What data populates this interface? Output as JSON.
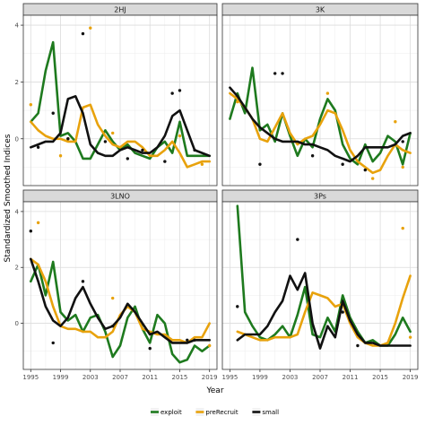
{
  "chart_data": {
    "type": "line",
    "ylabel": "Standardized Smoothed Indices",
    "xlabel": "Year",
    "x_ticks": [
      1995,
      1999,
      2003,
      2007,
      2011,
      2015,
      2019
    ],
    "y_ticks": [
      0,
      2,
      4
    ],
    "xlim": [
      1994,
      2020
    ],
    "ylim": [
      -1.65,
      4.35
    ],
    "grid": true,
    "legend_position": "bottom",
    "legend": [
      {
        "name": "exploit",
        "color": "#1e7a1e"
      },
      {
        "name": "preRecruit",
        "color": "#e8a20c"
      },
      {
        "name": "small",
        "color": "#111111"
      }
    ],
    "panels": [
      {
        "title": "2HJ",
        "series": [
          {
            "name": "exploit",
            "x": [
              1995,
              1996,
              1997,
              1998,
              1999,
              2000,
              2001,
              2002,
              2003,
              2004,
              2005,
              2006,
              2007,
              2008,
              2009,
              2010,
              2011,
              2012,
              2013,
              2014,
              2015,
              2016,
              2017,
              2018,
              2019
            ],
            "y": [
              0.6,
              0.9,
              2.4,
              3.4,
              0.1,
              0.2,
              -0.1,
              -0.7,
              -0.7,
              -0.2,
              0.3,
              -0.1,
              -0.4,
              -0.2,
              -0.5,
              -0.6,
              -0.7,
              -0.3,
              -0.1,
              -0.5,
              0.6,
              -0.6,
              -0.6,
              -0.6,
              -0.6
            ]
          },
          {
            "name": "preRecruit",
            "x": [
              1995,
              1996,
              1997,
              1998,
              1999,
              2000,
              2001,
              2002,
              2003,
              2004,
              2005,
              2006,
              2007,
              2008,
              2009,
              2010,
              2011,
              2012,
              2013,
              2014,
              2015,
              2016,
              2017,
              2018,
              2019
            ],
            "y": [
              0.6,
              0.3,
              0.1,
              0.0,
              0.0,
              -0.1,
              -0.1,
              1.1,
              1.2,
              0.5,
              0.1,
              -0.2,
              -0.3,
              -0.1,
              -0.1,
              -0.3,
              -0.6,
              -0.6,
              -0.4,
              -0.1,
              -0.5,
              -1.0,
              -0.9,
              -0.8,
              -0.8
            ]
          },
          {
            "name": "small",
            "x": [
              1995,
              1996,
              1997,
              1998,
              1999,
              2000,
              2001,
              2002,
              2003,
              2004,
              2005,
              2006,
              2007,
              2008,
              2009,
              2010,
              2011,
              2012,
              2013,
              2014,
              2015,
              2016,
              2017,
              2018,
              2019
            ],
            "y": [
              -0.3,
              -0.2,
              -0.1,
              -0.1,
              0.2,
              1.4,
              1.5,
              0.9,
              -0.2,
              -0.5,
              -0.6,
              -0.6,
              -0.4,
              -0.3,
              -0.4,
              -0.5,
              -0.5,
              -0.3,
              0.1,
              0.8,
              1.0,
              0.3,
              -0.4,
              -0.5,
              -0.6
            ]
          }
        ],
        "points": [
          {
            "series": "preRecruit",
            "x": [
              1995,
              1999,
              2000,
              2003,
              2006,
              2015,
              2018
            ],
            "y": [
              1.2,
              -0.6,
              0.0,
              3.9,
              0.2,
              0.1,
              -0.9
            ]
          },
          {
            "series": "small",
            "x": [
              1996,
              1998,
              2000,
              2002,
              2005,
              2008,
              2010,
              2013,
              2014,
              2015,
              2017
            ],
            "y": [
              -0.3,
              0.9,
              0.0,
              3.7,
              -0.1,
              -0.7,
              -0.4,
              -0.8,
              1.6,
              1.7,
              -0.4
            ]
          }
        ]
      },
      {
        "title": "3K",
        "series": [
          {
            "name": "exploit",
            "x": [
              1995,
              1996,
              1997,
              1998,
              1999,
              2000,
              2001,
              2002,
              2003,
              2004,
              2005,
              2006,
              2007,
              2008,
              2009,
              2010,
              2011,
              2012,
              2013,
              2014,
              2015,
              2016,
              2017,
              2018,
              2019
            ],
            "y": [
              0.7,
              1.6,
              0.9,
              2.5,
              0.3,
              0.5,
              -0.1,
              0.9,
              0.1,
              -0.6,
              0.0,
              -0.3,
              0.7,
              1.4,
              1.0,
              -0.2,
              -0.7,
              -0.9,
              -0.2,
              -0.8,
              -0.5,
              0.1,
              -0.1,
              -0.9,
              0.2
            ]
          },
          {
            "name": "preRecruit",
            "x": [
              1995,
              1996,
              1997,
              1998,
              1999,
              2000,
              2001,
              2002,
              2003,
              2004,
              2005,
              2006,
              2007,
              2008,
              2009,
              2010,
              2011,
              2012,
              2013,
              2014,
              2015,
              2016,
              2017,
              2018,
              2019
            ],
            "y": [
              1.6,
              1.4,
              1.1,
              0.7,
              0.0,
              -0.1,
              0.4,
              0.9,
              0.2,
              -0.2,
              0.0,
              0.1,
              0.5,
              1.0,
              0.9,
              0.3,
              -0.4,
              -0.8,
              -1.0,
              -1.2,
              -1.1,
              -0.6,
              -0.2,
              -0.4,
              -0.5
            ]
          },
          {
            "name": "small",
            "x": [
              1995,
              1996,
              1997,
              1998,
              1999,
              2000,
              2001,
              2002,
              2003,
              2004,
              2005,
              2006,
              2007,
              2008,
              2009,
              2010,
              2011,
              2012,
              2013,
              2014,
              2015,
              2016,
              2017,
              2018,
              2019
            ],
            "y": [
              1.8,
              1.5,
              1.1,
              0.7,
              0.4,
              0.2,
              0.0,
              -0.1,
              -0.1,
              -0.1,
              -0.2,
              -0.2,
              -0.3,
              -0.4,
              -0.6,
              -0.7,
              -0.8,
              -0.6,
              -0.3,
              -0.3,
              -0.3,
              -0.3,
              -0.2,
              0.1,
              0.2
            ]
          }
        ],
        "points": [
          {
            "series": "preRecruit",
            "x": [
              1996,
              2008,
              2014,
              2017,
              2018
            ],
            "y": [
              1.3,
              1.6,
              -1.4,
              0.6,
              -1.0
            ]
          },
          {
            "series": "small",
            "x": [
              1999,
              2001,
              2002,
              2006,
              2010,
              2013,
              2018
            ],
            "y": [
              -0.9,
              2.3,
              2.3,
              -0.6,
              -0.9,
              -1.1,
              -0.1
            ]
          }
        ]
      },
      {
        "title": "3LNO",
        "series": [
          {
            "name": "exploit",
            "x": [
              1995,
              1996,
              1997,
              1998,
              1999,
              2000,
              2001,
              2002,
              2003,
              2004,
              2005,
              2006,
              2007,
              2008,
              2009,
              2010,
              2011,
              2012,
              2013,
              2014,
              2015,
              2016,
              2017,
              2018,
              2019
            ],
            "y": [
              1.5,
              2.1,
              1.0,
              2.2,
              0.4,
              0.1,
              0.3,
              -0.3,
              0.2,
              0.3,
              -0.3,
              -1.2,
              -0.8,
              0.2,
              0.6,
              -0.2,
              -0.7,
              0.3,
              0.0,
              -1.1,
              -1.4,
              -1.3,
              -0.8,
              -1.0,
              -0.8
            ]
          },
          {
            "name": "preRecruit",
            "x": [
              1995,
              1996,
              1997,
              1998,
              1999,
              2000,
              2001,
              2002,
              2003,
              2004,
              2005,
              2006,
              2007,
              2008,
              2009,
              2010,
              2011,
              2012,
              2013,
              2014,
              2015,
              2016,
              2017,
              2018,
              2019
            ],
            "y": [
              2.3,
              2.1,
              1.5,
              0.6,
              -0.1,
              -0.2,
              -0.2,
              -0.3,
              -0.3,
              -0.5,
              -0.5,
              -0.3,
              0.3,
              0.6,
              0.4,
              -0.2,
              -0.3,
              -0.4,
              -0.4,
              -0.6,
              -0.6,
              -0.7,
              -0.5,
              -0.5,
              0.0
            ]
          },
          {
            "name": "small",
            "x": [
              1995,
              1996,
              1997,
              1998,
              1999,
              2000,
              2001,
              2002,
              2003,
              2004,
              2005,
              2006,
              2007,
              2008,
              2009,
              2010,
              2011,
              2012,
              2013,
              2014,
              2015,
              2016,
              2017,
              2018,
              2019
            ],
            "y": [
              2.3,
              1.5,
              0.6,
              0.1,
              -0.1,
              0.2,
              0.9,
              1.3,
              0.7,
              0.2,
              -0.2,
              -0.1,
              0.2,
              0.7,
              0.4,
              0.0,
              -0.4,
              -0.3,
              -0.5,
              -0.7,
              -0.7,
              -0.7,
              -0.6,
              -0.6,
              -0.6
            ]
          }
        ],
        "points": [
          {
            "series": "preRecruit",
            "x": [
              1996,
              2006,
              2019
            ],
            "y": [
              3.6,
              0.9,
              -0.8
            ]
          },
          {
            "series": "small",
            "x": [
              1995,
              1998,
              2002,
              2006,
              2011,
              2016,
              2017
            ],
            "y": [
              3.3,
              -0.7,
              1.5,
              -0.1,
              -0.9,
              -0.6,
              -0.6
            ]
          }
        ]
      },
      {
        "title": "3Ps",
        "series": [
          {
            "name": "exploit",
            "x": [
              1996,
              1997,
              1998,
              1999,
              2000,
              2001,
              2002,
              2003,
              2004,
              2005,
              2006,
              2007,
              2008,
              2009,
              2010,
              2011,
              2012,
              2013,
              2014,
              2015,
              2016,
              2017,
              2018,
              2019
            ],
            "y": [
              4.2,
              0.4,
              -0.1,
              -0.5,
              -0.6,
              -0.4,
              -0.1,
              -0.5,
              0.3,
              1.3,
              -0.4,
              -0.5,
              0.2,
              -0.3,
              1.0,
              0.2,
              -0.3,
              -0.7,
              -0.6,
              -0.8,
              -0.8,
              -0.4,
              0.2,
              -0.3
            ]
          },
          {
            "name": "preRecruit",
            "x": [
              1996,
              1997,
              1998,
              1999,
              2000,
              2001,
              2002,
              2003,
              2004,
              2005,
              2006,
              2007,
              2008,
              2009,
              2010,
              2011,
              2012,
              2013,
              2014,
              2015,
              2016,
              2017,
              2018,
              2019
            ],
            "y": [
              -0.3,
              -0.4,
              -0.5,
              -0.6,
              -0.6,
              -0.5,
              -0.5,
              -0.5,
              -0.4,
              0.4,
              1.1,
              1.0,
              0.9,
              0.6,
              0.7,
              0.0,
              -0.5,
              -0.7,
              -0.8,
              -0.8,
              -0.7,
              0.0,
              0.9,
              1.7
            ]
          },
          {
            "name": "small",
            "x": [
              1996,
              1997,
              1998,
              1999,
              2000,
              2001,
              2002,
              2003,
              2004,
              2005,
              2006,
              2007,
              2008,
              2009,
              2010,
              2011,
              2012,
              2013,
              2014,
              2015,
              2016,
              2017,
              2018,
              2019
            ],
            "y": [
              -0.6,
              -0.4,
              -0.4,
              -0.4,
              -0.1,
              0.4,
              0.8,
              1.7,
              1.2,
              1.8,
              0.0,
              -0.9,
              -0.1,
              -0.5,
              0.8,
              0.1,
              -0.4,
              -0.7,
              -0.7,
              -0.8,
              -0.8,
              -0.8,
              -0.8,
              -0.8
            ]
          }
        ],
        "points": [
          {
            "series": "preRecruit",
            "x": [
              2018,
              2019
            ],
            "y": [
              3.4,
              -0.5
            ]
          },
          {
            "series": "small",
            "x": [
              1996,
              2004,
              2010,
              2012
            ],
            "y": [
              0.6,
              3.0,
              0.4,
              -0.8
            ]
          }
        ]
      }
    ]
  }
}
